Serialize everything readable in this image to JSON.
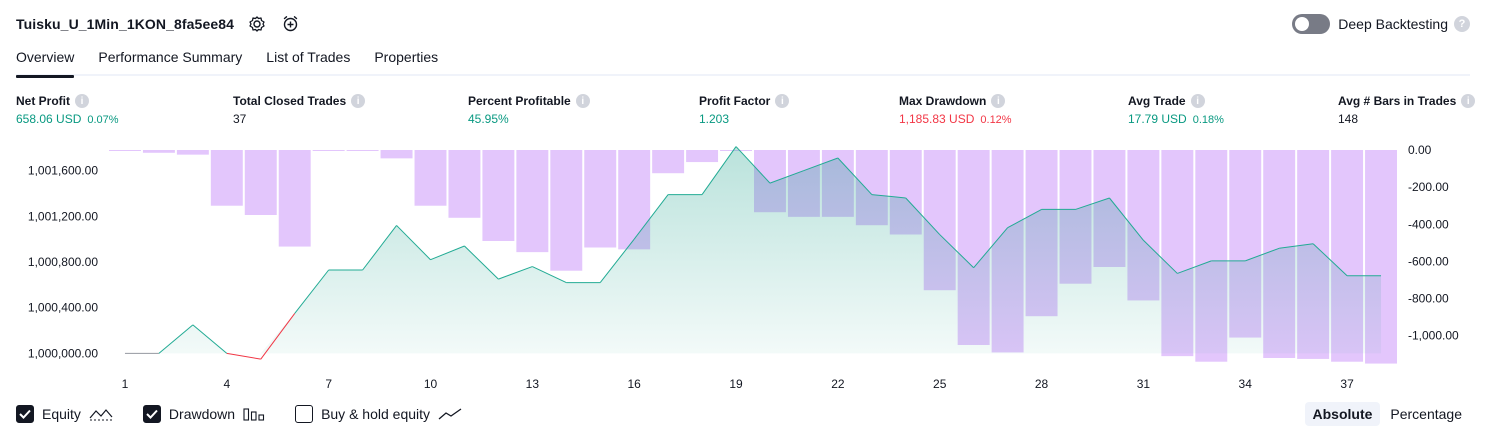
{
  "header": {
    "strategy_name": "Tuisku_U_1Min_1KON_8fa5ee84",
    "settings_icon": "gear-icon",
    "add_alert_icon": "alarm-add-icon"
  },
  "deep_backtesting": {
    "label": "Deep Backtesting",
    "enabled": false,
    "help": "?"
  },
  "tabs": [
    {
      "label": "Overview",
      "active": true
    },
    {
      "label": "Performance Summary",
      "active": false
    },
    {
      "label": "List of Trades",
      "active": false
    },
    {
      "label": "Properties",
      "active": false
    }
  ],
  "stats": [
    {
      "label": "Net Profit",
      "value": "658.06 USD",
      "pct": "0.07%",
      "color": "green"
    },
    {
      "label": "Total Closed Trades",
      "value": "37",
      "pct": "",
      "color": "dark"
    },
    {
      "label": "Percent Profitable",
      "value": "45.95%",
      "pct": "",
      "color": "green"
    },
    {
      "label": "Profit Factor",
      "value": "1.203",
      "pct": "",
      "color": "green"
    },
    {
      "label": "Max Drawdown",
      "value": "1,185.83 USD",
      "pct": "0.12%",
      "color": "red"
    },
    {
      "label": "Avg Trade",
      "value": "17.79 USD",
      "pct": "0.18%",
      "color": "green"
    },
    {
      "label": "Avg # Bars in Trades",
      "value": "148",
      "pct": "",
      "color": "dark"
    }
  ],
  "legend": {
    "equity": {
      "label": "Equity",
      "checked": true
    },
    "drawdown": {
      "label": "Drawdown",
      "checked": true
    },
    "buy_hold": {
      "label": "Buy & hold equity",
      "checked": false
    }
  },
  "modes": {
    "absolute": "Absolute",
    "percentage": "Percentage",
    "active": "absolute"
  },
  "colors": {
    "equity_line": "#22ab94",
    "equity_negative": "#f23645",
    "equity_fill": "#089981",
    "drawdown_fill": "#e1c3fc",
    "drawdown_line": "#d6b8f6",
    "positive": "#089981",
    "negative": "#f23645"
  },
  "chart_data": {
    "type": "area",
    "x": [
      1,
      2,
      3,
      4,
      5,
      6,
      7,
      8,
      9,
      10,
      11,
      12,
      13,
      14,
      15,
      16,
      17,
      18,
      19,
      20,
      21,
      22,
      23,
      24,
      25,
      26,
      27,
      28,
      29,
      30,
      31,
      32,
      33,
      34,
      35,
      36,
      37,
      38
    ],
    "x_ticks": [
      1,
      4,
      7,
      10,
      13,
      16,
      19,
      22,
      25,
      28,
      31,
      34,
      37
    ],
    "y_left_ticks": [
      "1,000,000.00",
      "1,000,400.00",
      "1,000,800.00",
      "1,001,200.00",
      "1,001,600.00"
    ],
    "y_left_tick_values": [
      1000000,
      1000400,
      1000800,
      1001200,
      1001600
    ],
    "y_right_ticks": [
      "0.00",
      "-200.00",
      "-400.00",
      "-600.00",
      "-800.00",
      "-1,000.00"
    ],
    "y_right_tick_values": [
      0,
      -200,
      -400,
      -600,
      -800,
      -1000
    ],
    "ylim_left": [
      999960,
      1001780
    ],
    "ylim_right": [
      -1120,
      0
    ],
    "series": [
      {
        "name": "Equity",
        "axis": "left",
        "values": [
          1000000,
          1000000,
          1000250,
          1000000,
          999950,
          1000350,
          1000730,
          1000730,
          1001120,
          1000820,
          1000940,
          1000650,
          1000760,
          1000620,
          1000620,
          1001000,
          1001390,
          1001390,
          1001810,
          1001490,
          1001600,
          1001710,
          1001390,
          1001360,
          1001040,
          1000750,
          1001100,
          1001260,
          1001260,
          1001360,
          1000990,
          1000700,
          1000810,
          1000810,
          1000920,
          1000960,
          1000680,
          1000680
        ]
      },
      {
        "name": "Drawdown",
        "axis": "right",
        "values": [
          -5,
          -15,
          -25,
          -300,
          -350,
          -520,
          -5,
          -5,
          -45,
          -300,
          -365,
          -490,
          -550,
          -650,
          -525,
          -535,
          -125,
          -65,
          -5,
          -335,
          -360,
          -360,
          -405,
          -455,
          -755,
          -1050,
          -1090,
          -895,
          -720,
          -630,
          -810,
          -1110,
          -1140,
          -1010,
          -1120,
          -1125,
          -1140,
          -1150
        ]
      }
    ]
  }
}
